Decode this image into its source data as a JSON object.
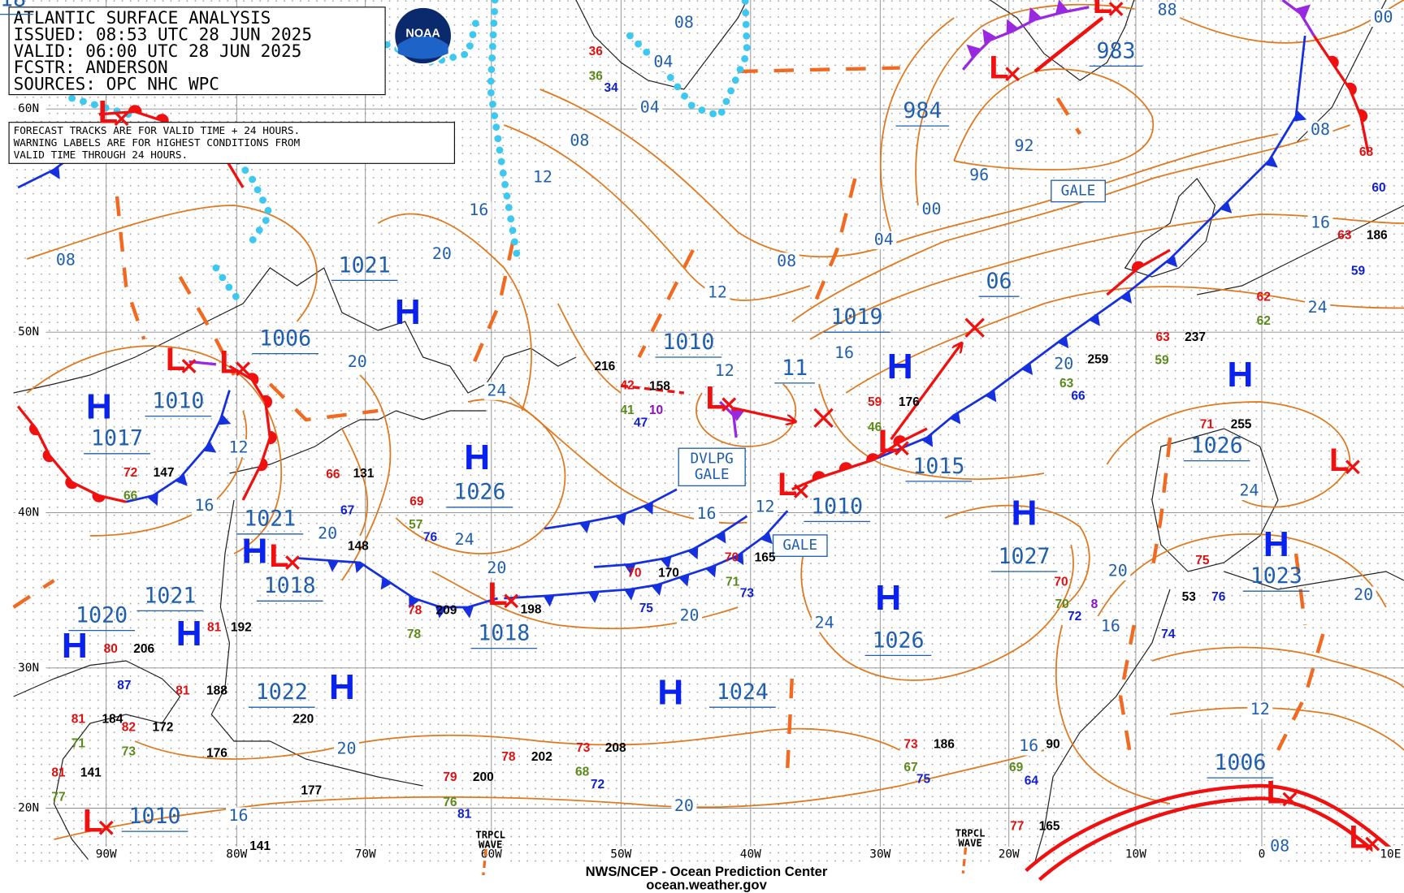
{
  "header": {
    "lines": [
      "ATLANTIC SURFACE ANALYSIS",
      "ISSUED: 08:53 UTC 28 JUN 2025",
      "VALID:  06:00 UTC 28 JUN 2025",
      "FCSTR:  ANDERSON",
      "SOURCES: OPC NHC WPC"
    ]
  },
  "logo": "NOAA",
  "notice": [
    "FORECAST TRACKS ARE FOR VALID TIME + 24 HOURS.",
    "WARNING LABELS ARE FOR HIGHEST CONDITIONS FROM",
    "VALID TIME THROUGH 24 HOURS."
  ],
  "latitude_labels": [
    "60N",
    "50N",
    "40N",
    "30N",
    "20N"
  ],
  "longitude_labels": [
    "90W",
    "80W",
    "70W",
    "60W",
    "50W",
    "40W",
    "30W",
    "20W",
    "10W",
    "0",
    "10E"
  ],
  "centers": [
    {
      "symbol": "H",
      "pressure": "1021"
    },
    {
      "symbol": "H",
      "pressure": "1017"
    },
    {
      "symbol": "H",
      "pressure": "1026"
    },
    {
      "symbol": "H",
      "pressure": "1019"
    },
    {
      "symbol": "H",
      "pressure": "1026"
    },
    {
      "symbol": "H",
      "pressure": "1027"
    },
    {
      "symbol": "H",
      "pressure": "1026"
    },
    {
      "symbol": "H",
      "pressure": "1023"
    },
    {
      "symbol": "H",
      "pressure": "1020"
    },
    {
      "symbol": "H",
      "pressure": "1021"
    },
    {
      "symbol": "H",
      "pressure": "1022"
    },
    {
      "symbol": "H",
      "pressure": "1024"
    },
    {
      "symbol": "H",
      "pressure": "1021"
    },
    {
      "symbol": "H"
    },
    {
      "symbol": "H",
      "pressure": "1018"
    },
    {
      "symbol": "L"
    },
    {
      "symbol": "L",
      "pressure": "983"
    },
    {
      "symbol": "L"
    },
    {
      "symbol": "L",
      "pressure": "1006"
    },
    {
      "symbol": "L",
      "pressure": "1010"
    },
    {
      "symbol": "L",
      "pressure": "1018"
    },
    {
      "symbol": "L",
      "pressure": "1010"
    },
    {
      "symbol": "L",
      "pressure": "1015"
    },
    {
      "symbol": "L",
      "pressure": "1018"
    },
    {
      "symbol": "L"
    },
    {
      "symbol": "L",
      "pressure": "1006"
    },
    {
      "symbol": "L"
    },
    {
      "symbol": "L",
      "pressure": "1010"
    },
    {
      "symbol": "L"
    }
  ],
  "pressure_labels": [
    "984",
    "1010",
    "11",
    "06"
  ],
  "isobar_labels": [
    "08",
    "04",
    "04",
    "08",
    "12",
    "16",
    "20",
    "08",
    "20",
    "24",
    "12",
    "16",
    "12",
    "08",
    "04",
    "00",
    "96",
    "92",
    "88",
    "00",
    "08",
    "16",
    "24",
    "16",
    "12",
    "16",
    "12",
    "24",
    "20",
    "20",
    "20",
    "24",
    "20",
    "24",
    "20",
    "16",
    "20",
    "12",
    "20",
    "16",
    "20",
    "16",
    "08"
  ],
  "warnings": [
    "GALE",
    "DVLPG GALE",
    "GALE"
  ],
  "waves": [
    "TRPCL WAVE",
    "TRPCL WAVE"
  ],
  "stations": [
    {
      "text": "72",
      "color": "#e01010"
    },
    {
      "text": "147",
      "color": "#000000"
    },
    {
      "text": "66",
      "color": "#5a8a1a"
    },
    {
      "text": "66",
      "color": "#e01010"
    },
    {
      "text": "131",
      "color": "#000000"
    },
    {
      "text": "67",
      "color": "#1020d0"
    },
    {
      "text": "69",
      "color": "#e01010"
    },
    {
      "text": "57",
      "color": "#5a8a1a"
    },
    {
      "text": "76",
      "color": "#1020d0"
    },
    {
      "text": "158",
      "color": "#000000"
    },
    {
      "text": "42",
      "color": "#e01010"
    },
    {
      "text": "41",
      "color": "#5a8a1a"
    },
    {
      "text": "10",
      "color": "#8a10c0"
    },
    {
      "text": "47",
      "color": "#1020d0"
    },
    {
      "text": "216",
      "color": "#000000"
    },
    {
      "text": "59",
      "color": "#e01010"
    },
    {
      "text": "176",
      "color": "#000000"
    },
    {
      "text": "46",
      "color": "#5a8a1a"
    },
    {
      "text": "259",
      "color": "#000000"
    },
    {
      "text": "63",
      "color": "#5a8a1a"
    },
    {
      "text": "66",
      "color": "#1020d0"
    },
    {
      "text": "63",
      "color": "#e01010"
    },
    {
      "text": "237",
      "color": "#000000"
    },
    {
      "text": "59",
      "color": "#5a8a1a"
    },
    {
      "text": "71",
      "color": "#e01010"
    },
    {
      "text": "255",
      "color": "#000000"
    },
    {
      "text": "70",
      "color": "#e01010"
    },
    {
      "text": "170",
      "color": "#000000"
    },
    {
      "text": "75",
      "color": "#1020d0"
    },
    {
      "text": "78",
      "color": "#e01010"
    },
    {
      "text": "209",
      "color": "#000000"
    },
    {
      "text": "78",
      "color": "#5a8a1a"
    },
    {
      "text": "198",
      "color": "#000000"
    },
    {
      "text": "206",
      "color": "#000000"
    },
    {
      "text": "80",
      "color": "#e01010"
    },
    {
      "text": "87",
      "color": "#1020d0"
    },
    {
      "text": "184",
      "color": "#000000"
    },
    {
      "text": "81",
      "color": "#e01010"
    },
    {
      "text": "71",
      "color": "#5a8a1a"
    },
    {
      "text": "172",
      "color": "#000000"
    },
    {
      "text": "82",
      "color": "#e01010"
    },
    {
      "text": "73",
      "color": "#5a8a1a"
    },
    {
      "text": "176",
      "color": "#000000"
    },
    {
      "text": "220",
      "color": "#000000"
    },
    {
      "text": "202",
      "color": "#000000"
    },
    {
      "text": "78",
      "color": "#e01010"
    },
    {
      "text": "208",
      "color": "#000000"
    },
    {
      "text": "73",
      "color": "#e01010"
    },
    {
      "text": "68",
      "color": "#5a8a1a"
    },
    {
      "text": "72",
      "color": "#1020d0"
    },
    {
      "text": "200",
      "color": "#000000"
    },
    {
      "text": "79",
      "color": "#e01010"
    },
    {
      "text": "76",
      "color": "#5a8a1a"
    },
    {
      "text": "81",
      "color": "#1020d0"
    },
    {
      "text": "186",
      "color": "#000000"
    },
    {
      "text": "73",
      "color": "#e01010"
    },
    {
      "text": "67",
      "color": "#5a8a1a"
    },
    {
      "text": "75",
      "color": "#1020d0"
    },
    {
      "text": "141",
      "color": "#000000"
    },
    {
      "text": "81",
      "color": "#e01010"
    },
    {
      "text": "77",
      "color": "#5a8a1a"
    },
    {
      "text": "177",
      "color": "#000000"
    },
    {
      "text": "141",
      "color": "#000000"
    },
    {
      "text": "148",
      "color": "#000000"
    },
    {
      "text": "36",
      "color": "#e01010"
    },
    {
      "text": "36",
      "color": "#5a8a1a"
    },
    {
      "text": "34",
      "color": "#1020d0"
    },
    {
      "text": "192",
      "color": "#000000"
    },
    {
      "text": "81",
      "color": "#e01010"
    },
    {
      "text": "188",
      "color": "#000000"
    },
    {
      "text": "81",
      "color": "#e01010"
    },
    {
      "text": "165",
      "color": "#000000"
    },
    {
      "text": "77",
      "color": "#e01010"
    },
    {
      "text": "70",
      "color": "#e01010"
    },
    {
      "text": "70",
      "color": "#5a8a1a"
    },
    {
      "text": "72",
      "color": "#1020d0"
    },
    {
      "text": "8",
      "color": "#8a10c0"
    },
    {
      "text": "75",
      "color": "#e01010"
    },
    {
      "text": "76",
      "color": "#1020d0"
    },
    {
      "text": "53",
      "color": "#000000"
    },
    {
      "text": "74",
      "color": "#1020d0"
    },
    {
      "text": "90",
      "color": "#000000"
    },
    {
      "text": "64",
      "color": "#1020d0"
    },
    {
      "text": "69",
      "color": "#5a8a1a"
    },
    {
      "text": "62",
      "color": "#e01010"
    },
    {
      "text": "62",
      "color": "#5a8a1a"
    },
    {
      "text": "63",
      "color": "#e01010"
    },
    {
      "text": "186",
      "color": "#000000"
    },
    {
      "text": "59",
      "color": "#1020d0"
    },
    {
      "text": "68",
      "color": "#e01010"
    },
    {
      "text": "60",
      "color": "#1020d0"
    },
    {
      "text": "71",
      "color": "#5a8a1a"
    },
    {
      "text": "73",
      "color": "#1020d0"
    },
    {
      "text": "70",
      "color": "#e01010"
    },
    {
      "text": "165",
      "color": "#000000"
    }
  ],
  "footer": [
    "NWS/NCEP - Ocean Prediction Center",
    "ocean.weather.gov"
  ]
}
